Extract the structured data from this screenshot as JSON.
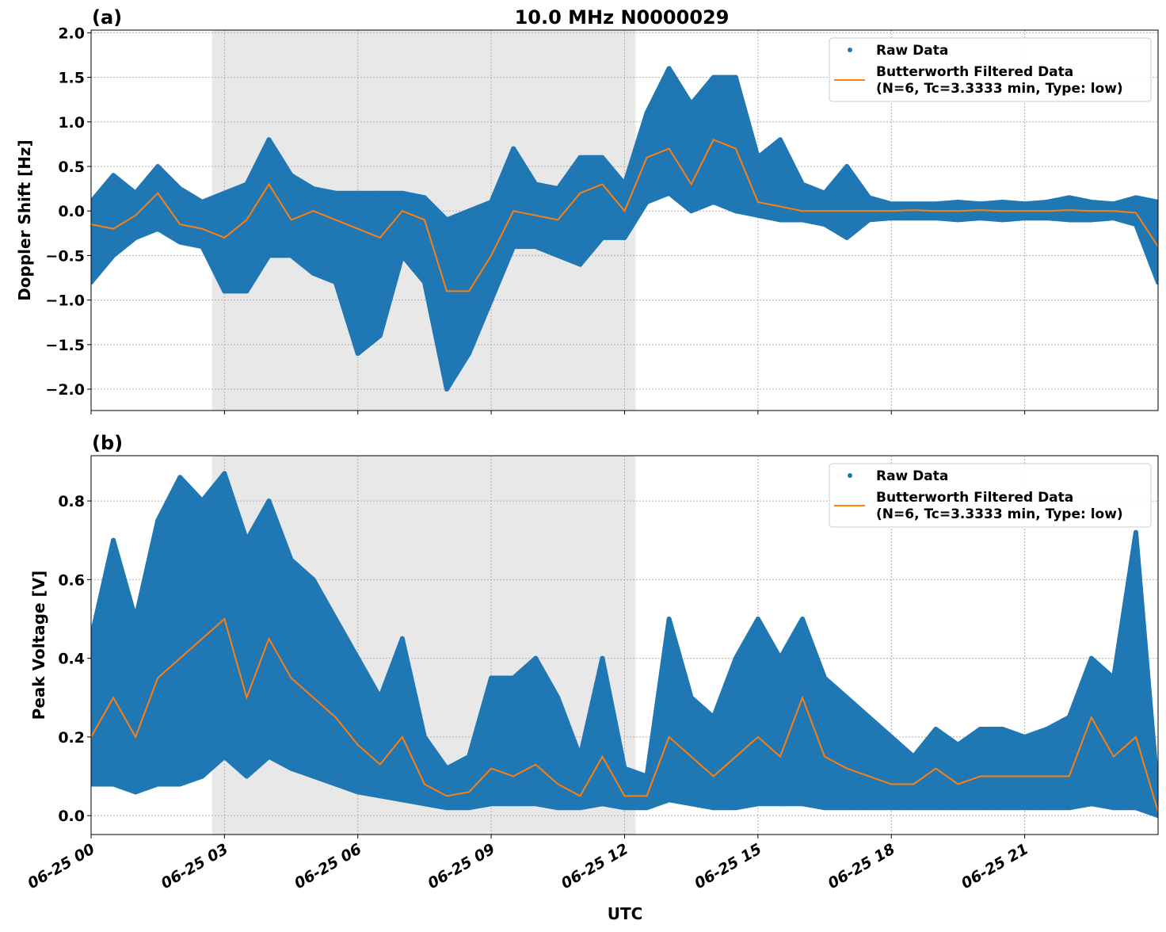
{
  "title": "10.0 MHz N0000029",
  "xlabel": "UTC",
  "colors": {
    "raw": "#1f77b4",
    "filtered": "#ff7f0e",
    "shade": "#e8e8e8",
    "grid": "#b0b0b0"
  },
  "legend": {
    "raw": "Raw Data",
    "filtered_line1": "Butterworth Filtered Data",
    "filtered_line2": "(N=6, Tc=3.3333 min, Type: low)",
    "placement": "top-right"
  },
  "x_ticks": [
    "06-25 00",
    "06-25 03",
    "06-25 06",
    "06-25 09",
    "06-25 12",
    "06-25 15",
    "06-25 18",
    "06-25 21"
  ],
  "chart_data": [
    {
      "type": "scatter",
      "panel_label": "(a)",
      "ylabel": "Doppler Shift [Hz]",
      "x_unit": "hours UTC on 06-25",
      "xlim": [
        0,
        24
      ],
      "ylim": [
        -2.24,
        2.03
      ],
      "y_ticks": [
        2.0,
        1.5,
        1.0,
        0.5,
        0.0,
        -0.5,
        -1.0,
        -1.5,
        -2.0
      ],
      "y_tick_labels": [
        "2.0",
        "1.5",
        "1.0",
        "0.5",
        "0.0",
        "−0.5",
        "−1.0",
        "−1.5",
        "−2.0"
      ],
      "grid": true,
      "shaded_interval_hours": [
        2.72,
        12.25
      ],
      "x": [
        0,
        0.5,
        1,
        1.5,
        2,
        2.5,
        3,
        3.5,
        4,
        4.5,
        5,
        5.5,
        6,
        6.5,
        7,
        7.5,
        8,
        8.5,
        9,
        9.5,
        10,
        10.5,
        11,
        11.5,
        12,
        12.5,
        13,
        13.5,
        14,
        14.5,
        15,
        15.5,
        16,
        16.5,
        17,
        17.5,
        18,
        18.5,
        19,
        19.5,
        20,
        20.5,
        21,
        21.5,
        22,
        22.5,
        23,
        23.5,
        24
      ],
      "series": [
        {
          "name": "Raw Data",
          "kind": "envelope",
          "min": [
            -0.8,
            -0.5,
            -0.3,
            -0.2,
            -0.35,
            -0.4,
            -0.9,
            -0.9,
            -0.5,
            -0.5,
            -0.7,
            -0.8,
            -1.6,
            -1.4,
            -0.5,
            -0.8,
            -2.0,
            -1.6,
            -1.0,
            -0.4,
            -0.4,
            -0.5,
            -0.6,
            -0.3,
            -0.3,
            0.1,
            0.2,
            0.0,
            0.1,
            0.0,
            -0.05,
            -0.1,
            -0.1,
            -0.15,
            -0.3,
            -0.1,
            -0.08,
            -0.08,
            -0.08,
            -0.1,
            -0.08,
            -0.1,
            -0.08,
            -0.08,
            -0.1,
            -0.1,
            -0.08,
            -0.15,
            -0.8
          ],
          "max": [
            0.1,
            0.4,
            0.2,
            0.5,
            0.25,
            0.1,
            0.2,
            0.3,
            0.8,
            0.4,
            0.25,
            0.2,
            0.2,
            0.2,
            0.2,
            0.15,
            -0.1,
            0.0,
            0.1,
            0.7,
            0.3,
            0.25,
            0.6,
            0.6,
            0.3,
            1.1,
            1.6,
            1.2,
            1.5,
            1.5,
            0.6,
            0.8,
            0.3,
            0.2,
            0.5,
            0.15,
            0.08,
            0.08,
            0.08,
            0.1,
            0.08,
            0.1,
            0.08,
            0.1,
            0.15,
            0.1,
            0.08,
            0.15,
            0.1
          ]
        },
        {
          "name": "Butterworth Filtered Data",
          "kind": "line",
          "values": [
            -0.15,
            -0.2,
            -0.05,
            0.2,
            -0.15,
            -0.2,
            -0.3,
            -0.1,
            0.3,
            -0.1,
            0.0,
            -0.1,
            -0.2,
            -0.3,
            0.0,
            -0.1,
            -0.9,
            -0.9,
            -0.5,
            0.0,
            -0.05,
            -0.1,
            0.2,
            0.3,
            0.0,
            0.6,
            0.7,
            0.3,
            0.8,
            0.7,
            0.1,
            0.05,
            0.0,
            0.0,
            0.0,
            0.0,
            0.0,
            0.01,
            0.0,
            0.0,
            0.01,
            0.0,
            0.0,
            0.0,
            0.01,
            0.0,
            0.0,
            -0.02,
            -0.4
          ]
        }
      ]
    },
    {
      "type": "scatter",
      "panel_label": "(b)",
      "ylabel": "Peak Voltage [V]",
      "x_unit": "hours UTC on 06-25",
      "xlim": [
        0,
        24
      ],
      "ylim": [
        -0.048,
        0.915
      ],
      "y_ticks": [
        0.8,
        0.6,
        0.4,
        0.2,
        0.0
      ],
      "y_tick_labels": [
        "0.8",
        "0.6",
        "0.4",
        "0.2",
        "0.0"
      ],
      "grid": true,
      "shaded_interval_hours": [
        2.72,
        12.25
      ],
      "x": [
        0,
        0.5,
        1,
        1.5,
        2,
        2.5,
        3,
        3.5,
        4,
        4.5,
        5,
        5.5,
        6,
        6.5,
        7,
        7.5,
        8,
        8.5,
        9,
        9.5,
        10,
        10.5,
        11,
        11.5,
        12,
        12.5,
        13,
        13.5,
        14,
        14.5,
        15,
        15.5,
        16,
        16.5,
        17,
        17.5,
        18,
        18.5,
        19,
        19.5,
        20,
        20.5,
        21,
        21.5,
        22,
        22.5,
        23,
        23.5,
        24
      ],
      "series": [
        {
          "name": "Raw Data",
          "kind": "envelope",
          "min": [
            0.08,
            0.08,
            0.06,
            0.08,
            0.08,
            0.1,
            0.15,
            0.1,
            0.15,
            0.12,
            0.1,
            0.08,
            0.06,
            0.05,
            0.04,
            0.03,
            0.02,
            0.02,
            0.03,
            0.03,
            0.03,
            0.02,
            0.02,
            0.03,
            0.02,
            0.02,
            0.04,
            0.03,
            0.02,
            0.02,
            0.03,
            0.03,
            0.03,
            0.02,
            0.02,
            0.02,
            0.02,
            0.02,
            0.02,
            0.02,
            0.02,
            0.02,
            0.02,
            0.02,
            0.02,
            0.03,
            0.02,
            0.02,
            0.0
          ],
          "max": [
            0.45,
            0.7,
            0.5,
            0.75,
            0.86,
            0.8,
            0.87,
            0.7,
            0.8,
            0.65,
            0.6,
            0.5,
            0.4,
            0.3,
            0.45,
            0.2,
            0.12,
            0.15,
            0.35,
            0.35,
            0.4,
            0.3,
            0.15,
            0.4,
            0.12,
            0.1,
            0.5,
            0.3,
            0.25,
            0.4,
            0.5,
            0.4,
            0.5,
            0.35,
            0.3,
            0.25,
            0.2,
            0.15,
            0.22,
            0.18,
            0.22,
            0.22,
            0.2,
            0.22,
            0.25,
            0.4,
            0.35,
            0.72,
            0.05
          ]
        },
        {
          "name": "Butterworth Filtered Data",
          "kind": "line",
          "values": [
            0.2,
            0.3,
            0.2,
            0.35,
            0.4,
            0.45,
            0.5,
            0.3,
            0.45,
            0.35,
            0.3,
            0.25,
            0.18,
            0.13,
            0.2,
            0.08,
            0.05,
            0.06,
            0.12,
            0.1,
            0.13,
            0.08,
            0.05,
            0.15,
            0.05,
            0.05,
            0.2,
            0.15,
            0.1,
            0.15,
            0.2,
            0.15,
            0.3,
            0.15,
            0.12,
            0.1,
            0.08,
            0.08,
            0.12,
            0.08,
            0.1,
            0.1,
            0.1,
            0.1,
            0.1,
            0.25,
            0.15,
            0.2,
            0.01
          ]
        }
      ]
    }
  ]
}
